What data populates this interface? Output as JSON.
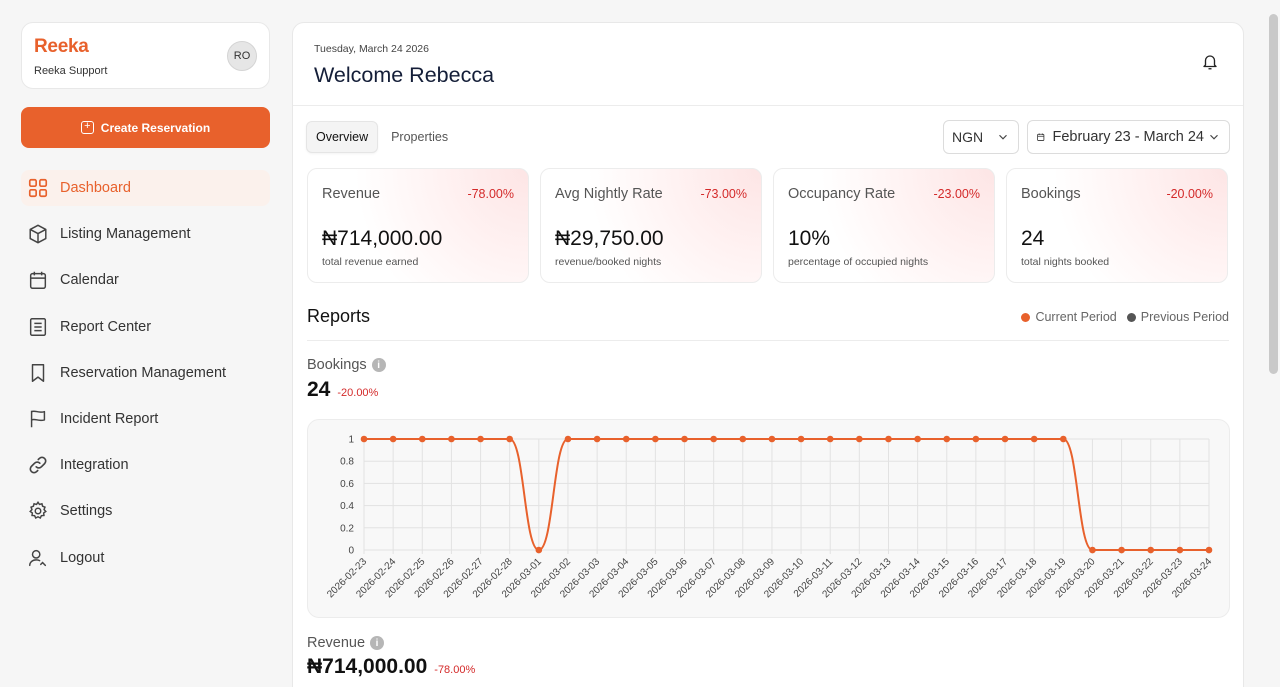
{
  "brand": {
    "logo": "Reeka",
    "subtitle": "Reeka Support",
    "avatar_initials": "RO"
  },
  "sidebar": {
    "create_label": "Create Reservation",
    "items": [
      {
        "label": "Dashboard",
        "icon": "dashboard-icon",
        "active": true
      },
      {
        "label": "Listing Management",
        "icon": "box-icon"
      },
      {
        "label": "Calendar",
        "icon": "calendar-icon"
      },
      {
        "label": "Report Center",
        "icon": "report-icon"
      },
      {
        "label": "Reservation Management",
        "icon": "bookmark-icon"
      },
      {
        "label": "Incident Report",
        "icon": "flag-icon"
      },
      {
        "label": "Integration",
        "icon": "link-icon"
      },
      {
        "label": "Settings",
        "icon": "gear-icon"
      },
      {
        "label": "Logout",
        "icon": "logout-icon"
      }
    ]
  },
  "header": {
    "date": "Tuesday, March 24 2026",
    "welcome": "Welcome Rebecca"
  },
  "tabs": [
    {
      "label": "Overview",
      "active": true
    },
    {
      "label": "Properties"
    }
  ],
  "filters": {
    "currency": "NGN",
    "date_range": "February 23 - March 24"
  },
  "stats": [
    {
      "label": "Revenue",
      "change": "-78.00%",
      "value": "₦714,000.00",
      "sub": "total revenue earned"
    },
    {
      "label": "Avg Nightly Rate",
      "change": "-73.00%",
      "value": "₦29,750.00",
      "sub": "revenue/booked nights"
    },
    {
      "label": "Occupancy Rate",
      "change": "-23.00%",
      "value": "10%",
      "sub": "percentage of occupied nights"
    },
    {
      "label": "Bookings",
      "change": "-20.00%",
      "value": "24",
      "sub": "total nights booked"
    }
  ],
  "reports": {
    "title": "Reports",
    "legend": [
      {
        "label": "Current Period",
        "color": "#e8612c"
      },
      {
        "label": "Previous Period",
        "color": "#555555"
      }
    ],
    "bookings": {
      "label": "Bookings",
      "value": "24",
      "change": "-20.00%"
    },
    "revenue": {
      "label": "Revenue",
      "value": "₦714,000.00",
      "change": "-78.00%"
    }
  },
  "chart_data": {
    "type": "line",
    "x": [
      "2026-02-23",
      "2026-02-24",
      "2026-02-25",
      "2026-02-26",
      "2026-02-27",
      "2026-02-28",
      "2026-03-01",
      "2026-03-02",
      "2026-03-03",
      "2026-03-04",
      "2026-03-05",
      "2026-03-06",
      "2026-03-07",
      "2026-03-08",
      "2026-03-09",
      "2026-03-10",
      "2026-03-11",
      "2026-03-12",
      "2026-03-13",
      "2026-03-14",
      "2026-03-15",
      "2026-03-16",
      "2026-03-17",
      "2026-03-18",
      "2026-03-19",
      "2026-03-20",
      "2026-03-21",
      "2026-03-22",
      "2026-03-23",
      "2026-03-24"
    ],
    "series": [
      {
        "name": "Current Period",
        "color": "#e8612c",
        "values": [
          1,
          1,
          1,
          1,
          1,
          1,
          0,
          1,
          1,
          1,
          1,
          1,
          1,
          1,
          1,
          1,
          1,
          1,
          1,
          1,
          1,
          1,
          1,
          1,
          1,
          0,
          0,
          0,
          0,
          0
        ]
      }
    ],
    "yticks": [
      "0",
      "0.2",
      "0.4",
      "0.6",
      "0.8",
      "1"
    ],
    "ylim": [
      0,
      1
    ],
    "grid": true
  }
}
